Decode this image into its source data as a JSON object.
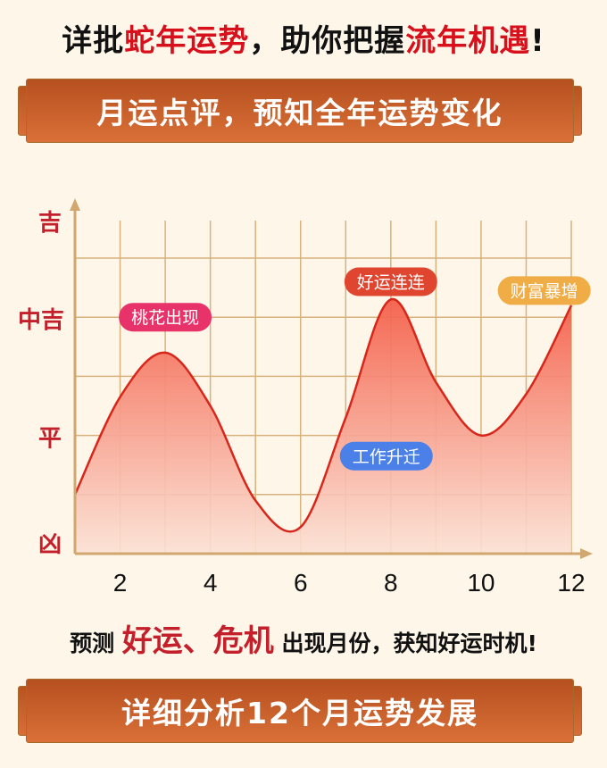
{
  "headline": {
    "part1": "详批",
    "part2": "蛇年运势",
    "part3": "，助你把握",
    "part4": "流年机遇",
    "part5": "!"
  },
  "banner_top": "月运点评，预知全年运势变化",
  "subline": {
    "part1": "预测 ",
    "part2": "好运、危机",
    "part3": " 出现月份，获知好运时机!"
  },
  "banner_bottom": "详细分析12个月运势发展",
  "chart_data": {
    "type": "area",
    "title": "",
    "xlabel": "",
    "ylabel": "",
    "x": [
      1,
      2,
      3,
      4,
      5,
      6,
      7,
      8,
      9,
      10,
      11,
      12
    ],
    "values": [
      1.0,
      2.65,
      3.4,
      2.5,
      0.9,
      0.45,
      2.3,
      4.3,
      2.9,
      2.0,
      2.7,
      4.2
    ],
    "xlim": [
      1,
      12
    ],
    "ylim": [
      0,
      6
    ],
    "x_ticks": [
      2,
      4,
      6,
      8,
      10,
      12
    ],
    "y_ticks": [
      {
        "value": 0,
        "label": "凶"
      },
      {
        "value": 2,
        "label": "平"
      },
      {
        "value": 4,
        "label": "中吉"
      },
      {
        "value": 5.65,
        "label": "吉"
      }
    ],
    "grid": true,
    "colors": {
      "line": "#d9261a",
      "fill_top": "#f4604a",
      "fill_bottom": "#fbe1d4",
      "grid": "#d8b27d",
      "axis": "#d1a76f",
      "ylabel": "#c4202c"
    },
    "annotations": [
      {
        "text": "桃花出现",
        "x": 3,
        "y": 4.0,
        "color": "#e8336a"
      },
      {
        "text": "好运连连",
        "x": 8,
        "y": 4.6,
        "color": "#e0452f"
      },
      {
        "text": "财富暴增",
        "x": 11.4,
        "y": 4.45,
        "color": "#f0ad45"
      },
      {
        "text": "工作升迁",
        "x": 7.9,
        "y": 1.65,
        "color": "#4a80e8"
      }
    ]
  }
}
